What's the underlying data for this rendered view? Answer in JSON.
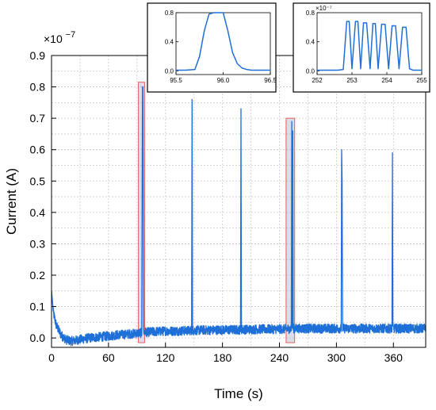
{
  "chart_data": {
    "type": "line",
    "title": "",
    "xlabel": "Time (s)",
    "ylabel": "Current (A)",
    "y_multiplier": "×10",
    "y_multiplier_exp": "−7",
    "xlim": [
      0,
      394
    ],
    "ylim": [
      -0.03,
      0.9
    ],
    "x_ticks": [
      "0",
      "60",
      "120",
      "180",
      "240",
      "300",
      "360"
    ],
    "x_tick_values": [
      0,
      60,
      120,
      180,
      240,
      300,
      360
    ],
    "y_ticks": [
      "0.0",
      "0.1",
      "0.2",
      "0.3",
      "0.4",
      "0.5",
      "0.6",
      "0.7",
      "0.8",
      "0.9"
    ],
    "y_tick_values": [
      0.0,
      0.1,
      0.2,
      0.3,
      0.4,
      0.5,
      0.6,
      0.7,
      0.8,
      0.9
    ],
    "grid": true,
    "line_color": "#1f6fd8",
    "highlight_color": "#e35d5d",
    "series": [
      {
        "x": [
          0,
          2,
          5,
          10,
          15,
          20,
          25,
          30,
          40,
          50,
          60,
          70,
          80,
          90,
          95,
          95.8,
          96.2,
          97,
          100,
          110,
          120,
          130,
          140,
          147.5,
          148,
          148.5,
          150,
          160,
          170,
          180,
          190,
          199,
          199.5,
          200,
          202,
          210,
          220,
          230,
          240,
          250,
          252.5,
          253,
          253.5,
          254,
          254.5,
          256,
          260,
          270,
          280,
          290,
          300,
          305,
          305.5,
          306,
          306.5,
          307,
          310,
          320,
          330,
          340,
          350,
          358.5,
          359,
          359.5,
          360,
          362,
          370,
          380,
          394
        ],
        "y": [
          0.15,
          0.08,
          0.04,
          0.01,
          -0.005,
          -0.01,
          -0.008,
          -0.005,
          0.0,
          0.003,
          0.006,
          0.01,
          0.012,
          0.015,
          0.016,
          0.8,
          0.8,
          0.02,
          0.018,
          0.02,
          0.022,
          0.022,
          0.023,
          0.024,
          0.76,
          0.024,
          0.024,
          0.025,
          0.025,
          0.026,
          0.026,
          0.026,
          0.73,
          0.027,
          0.027,
          0.027,
          0.028,
          0.028,
          0.028,
          0.029,
          0.029,
          0.69,
          0.03,
          0.66,
          0.03,
          0.03,
          0.03,
          0.03,
          0.03,
          0.03,
          0.03,
          0.03,
          0.6,
          0.5,
          0.03,
          0.03,
          0.03,
          0.03,
          0.03,
          0.03,
          0.03,
          0.03,
          0.59,
          0.03,
          0.03,
          0.03,
          0.03,
          0.03,
          0.03
        ]
      }
    ],
    "highlights": [
      {
        "x0": 91.5,
        "x1": 98,
        "y0": -0.015,
        "y1": 0.815
      },
      {
        "x0": 247,
        "x1": 256,
        "y0": -0.015,
        "y1": 0.7
      }
    ],
    "insets": [
      {
        "xlim": [
          95.5,
          96.5
        ],
        "ylim": [
          -0.05,
          0.8
        ],
        "x_ticks": [
          "95.5",
          "96.0",
          "96.5"
        ],
        "x_tick_values": [
          95.5,
          96.0,
          96.5
        ],
        "y_ticks": [
          "0.0",
          "0.4",
          "0.8"
        ],
        "y_tick_values": [
          0.0,
          0.4,
          0.8
        ],
        "y_multiplier": "",
        "x": [
          95.5,
          95.6,
          95.7,
          95.75,
          95.8,
          95.85,
          95.9,
          95.95,
          96.0,
          96.05,
          96.1,
          96.15,
          96.2,
          96.25,
          96.3,
          96.4,
          96.5
        ],
        "y": [
          0.01,
          0.01,
          0.02,
          0.2,
          0.55,
          0.78,
          0.8,
          0.8,
          0.8,
          0.55,
          0.25,
          0.1,
          0.04,
          0.02,
          0.01,
          0.01,
          0.01
        ]
      },
      {
        "xlim": [
          252,
          255
        ],
        "ylim": [
          -0.05,
          0.8
        ],
        "x_ticks": [
          "252",
          "253",
          "254",
          "255"
        ],
        "x_tick_values": [
          252,
          253,
          254,
          255
        ],
        "y_ticks": [
          "0.0",
          "0.4",
          "0.8"
        ],
        "y_tick_values": [
          0.0,
          0.4,
          0.8
        ],
        "y_multiplier": "×10⁻⁷",
        "x": [
          252,
          252.6,
          252.75,
          252.85,
          252.92,
          253.0,
          253.1,
          253.17,
          253.25,
          253.33,
          253.42,
          253.52,
          253.6,
          253.67,
          253.75,
          253.85,
          253.95,
          254.05,
          254.15,
          254.25,
          254.35,
          254.45,
          254.55,
          254.65,
          254.75,
          255
        ],
        "y": [
          0.01,
          0.01,
          0.02,
          0.68,
          0.68,
          0.03,
          0.68,
          0.68,
          0.03,
          0.66,
          0.66,
          0.03,
          0.65,
          0.65,
          0.03,
          0.64,
          0.64,
          0.03,
          0.62,
          0.62,
          0.03,
          0.6,
          0.6,
          0.03,
          0.01,
          0.01
        ]
      }
    ]
  }
}
